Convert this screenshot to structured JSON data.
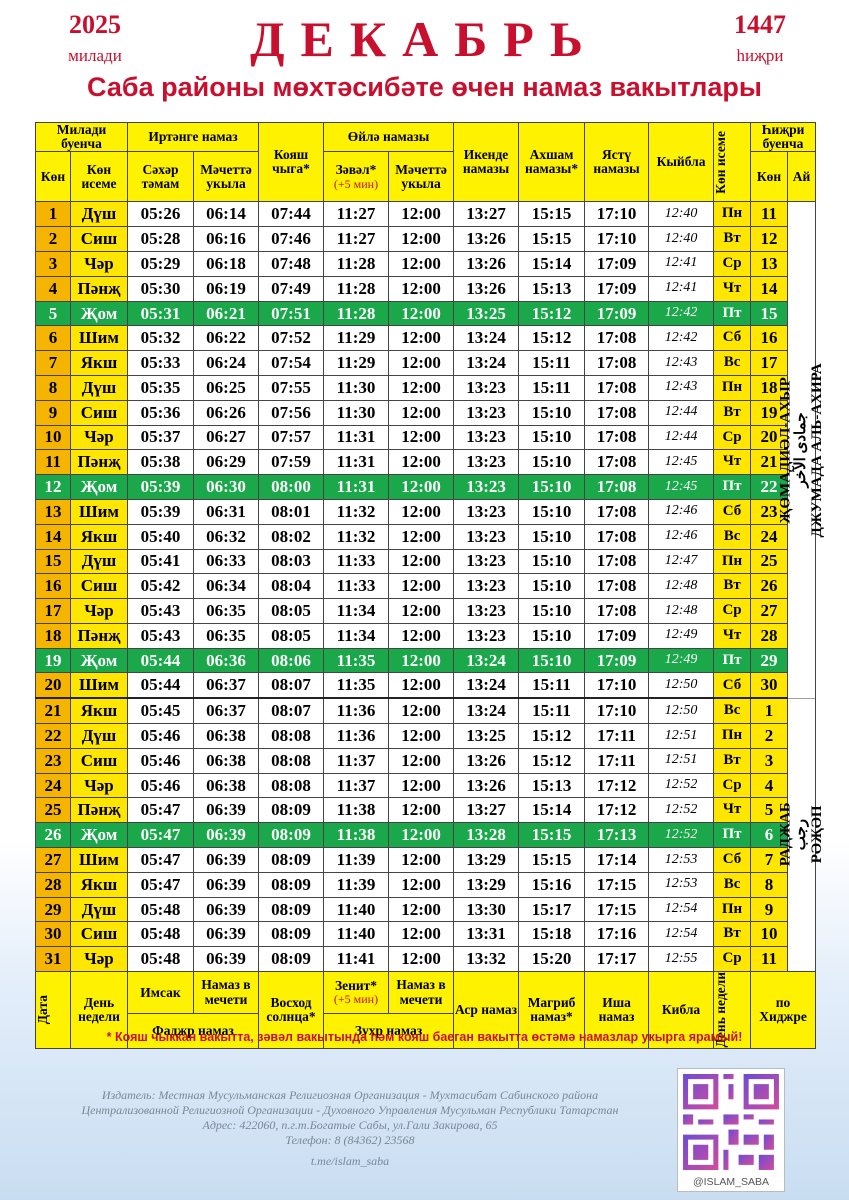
{
  "header": {
    "year_gregorian": "2025",
    "year_gregorian_label": "милади",
    "month": "ДЕКАБРЬ",
    "year_hijri": "1447",
    "year_hijri_label": "һиҗри",
    "subtitle": "Саба районы мөхтәсибәте өчен намаз вакытлары"
  },
  "table": {
    "head_top": [
      "Милади буенча",
      "Иртәнге намаз",
      "Кояш чыга*",
      "Өйлә намазы",
      "Икенде намазы",
      "Ахшам намазы*",
      "Ястү намазы",
      "Кыйбла",
      "Көн исеме",
      "Һиҗри буенча"
    ],
    "head_sub": [
      "Көн",
      "Көн исеме",
      "Сәхәр тәмам",
      "Мәчеттә укыла",
      "Зәвәл*",
      "(+5 мин)",
      "Мәчеттә укыла",
      "Көн",
      "Ай"
    ],
    "rows": [
      [
        1,
        "Дүш",
        "05:26",
        "06:14",
        "07:44",
        "11:27",
        "12:00",
        "13:27",
        "15:15",
        "17:10",
        "12:40",
        "Пн",
        11
      ],
      [
        2,
        "Сиш",
        "05:28",
        "06:16",
        "07:46",
        "11:27",
        "12:00",
        "13:26",
        "15:15",
        "17:10",
        "12:40",
        "Вт",
        12
      ],
      [
        3,
        "Чәр",
        "05:29",
        "06:18",
        "07:48",
        "11:28",
        "12:00",
        "13:26",
        "15:14",
        "17:09",
        "12:41",
        "Ср",
        13
      ],
      [
        4,
        "Пәнҗ",
        "05:30",
        "06:19",
        "07:49",
        "11:28",
        "12:00",
        "13:26",
        "15:13",
        "17:09",
        "12:41",
        "Чт",
        14
      ],
      [
        5,
        "Җом",
        "05:31",
        "06:21",
        "07:51",
        "11:28",
        "12:00",
        "13:25",
        "15:12",
        "17:09",
        "12:42",
        "Пт",
        15
      ],
      [
        6,
        "Шим",
        "05:32",
        "06:22",
        "07:52",
        "11:29",
        "12:00",
        "13:24",
        "15:12",
        "17:08",
        "12:42",
        "Сб",
        16
      ],
      [
        7,
        "Якш",
        "05:33",
        "06:24",
        "07:54",
        "11:29",
        "12:00",
        "13:24",
        "15:11",
        "17:08",
        "12:43",
        "Вс",
        17
      ],
      [
        8,
        "Дүш",
        "05:35",
        "06:25",
        "07:55",
        "11:30",
        "12:00",
        "13:23",
        "15:11",
        "17:08",
        "12:43",
        "Пн",
        18
      ],
      [
        9,
        "Сиш",
        "05:36",
        "06:26",
        "07:56",
        "11:30",
        "12:00",
        "13:23",
        "15:10",
        "17:08",
        "12:44",
        "Вт",
        19
      ],
      [
        10,
        "Чәр",
        "05:37",
        "06:27",
        "07:57",
        "11:31",
        "12:00",
        "13:23",
        "15:10",
        "17:08",
        "12:44",
        "Ср",
        20
      ],
      [
        11,
        "Пәнҗ",
        "05:38",
        "06:29",
        "07:59",
        "11:31",
        "12:00",
        "13:23",
        "15:10",
        "17:08",
        "12:45",
        "Чт",
        21
      ],
      [
        12,
        "Җом",
        "05:39",
        "06:30",
        "08:00",
        "11:31",
        "12:00",
        "13:23",
        "15:10",
        "17:08",
        "12:45",
        "Пт",
        22
      ],
      [
        13,
        "Шим",
        "05:39",
        "06:31",
        "08:01",
        "11:32",
        "12:00",
        "13:23",
        "15:10",
        "17:08",
        "12:46",
        "Сб",
        23
      ],
      [
        14,
        "Якш",
        "05:40",
        "06:32",
        "08:02",
        "11:32",
        "12:00",
        "13:23",
        "15:10",
        "17:08",
        "12:46",
        "Вс",
        24
      ],
      [
        15,
        "Дүш",
        "05:41",
        "06:33",
        "08:03",
        "11:33",
        "12:00",
        "13:23",
        "15:10",
        "17:08",
        "12:47",
        "Пн",
        25
      ],
      [
        16,
        "Сиш",
        "05:42",
        "06:34",
        "08:04",
        "11:33",
        "12:00",
        "13:23",
        "15:10",
        "17:08",
        "12:48",
        "Вт",
        26
      ],
      [
        17,
        "Чәр",
        "05:43",
        "06:35",
        "08:05",
        "11:34",
        "12:00",
        "13:23",
        "15:10",
        "17:08",
        "12:48",
        "Ср",
        27
      ],
      [
        18,
        "Пәнҗ",
        "05:43",
        "06:35",
        "08:05",
        "11:34",
        "12:00",
        "13:23",
        "15:10",
        "17:09",
        "12:49",
        "Чт",
        28
      ],
      [
        19,
        "Җом",
        "05:44",
        "06:36",
        "08:06",
        "11:35",
        "12:00",
        "13:24",
        "15:10",
        "17:09",
        "12:49",
        "Пт",
        29
      ],
      [
        20,
        "Шим",
        "05:44",
        "06:37",
        "08:07",
        "11:35",
        "12:00",
        "13:24",
        "15:11",
        "17:10",
        "12:50",
        "Сб",
        30
      ],
      [
        21,
        "Якш",
        "05:45",
        "06:37",
        "08:07",
        "11:36",
        "12:00",
        "13:24",
        "15:11",
        "17:10",
        "12:50",
        "Вс",
        1
      ],
      [
        22,
        "Дүш",
        "05:46",
        "06:38",
        "08:08",
        "11:36",
        "12:00",
        "13:25",
        "15:12",
        "17:11",
        "12:51",
        "Пн",
        2
      ],
      [
        23,
        "Сиш",
        "05:46",
        "06:38",
        "08:08",
        "11:37",
        "12:00",
        "13:26",
        "15:12",
        "17:11",
        "12:51",
        "Вт",
        3
      ],
      [
        24,
        "Чәр",
        "05:46",
        "06:38",
        "08:08",
        "11:37",
        "12:00",
        "13:26",
        "15:13",
        "17:12",
        "12:52",
        "Ср",
        4
      ],
      [
        25,
        "Пәнҗ",
        "05:47",
        "06:39",
        "08:09",
        "11:38",
        "12:00",
        "13:27",
        "15:14",
        "17:12",
        "12:52",
        "Чт",
        5
      ],
      [
        26,
        "Җом",
        "05:47",
        "06:39",
        "08:09",
        "11:38",
        "12:00",
        "13:28",
        "15:15",
        "17:13",
        "12:52",
        "Пт",
        6
      ],
      [
        27,
        "Шим",
        "05:47",
        "06:39",
        "08:09",
        "11:39",
        "12:00",
        "13:29",
        "15:15",
        "17:14",
        "12:53",
        "Сб",
        7
      ],
      [
        28,
        "Якш",
        "05:47",
        "06:39",
        "08:09",
        "11:39",
        "12:00",
        "13:29",
        "15:16",
        "17:15",
        "12:53",
        "Вс",
        8
      ],
      [
        29,
        "Дүш",
        "05:48",
        "06:39",
        "08:09",
        "11:40",
        "12:00",
        "13:30",
        "15:17",
        "17:15",
        "12:54",
        "Пн",
        9
      ],
      [
        30,
        "Сиш",
        "05:48",
        "06:39",
        "08:09",
        "11:40",
        "12:00",
        "13:31",
        "15:18",
        "17:16",
        "12:54",
        "Вт",
        10
      ],
      [
        31,
        "Чәр",
        "05:48",
        "06:39",
        "08:09",
        "11:41",
        "12:00",
        "13:32",
        "15:20",
        "17:17",
        "12:55",
        "Ср",
        11
      ]
    ],
    "hijri_months": [
      [
        "ҖӨМАДИӘЛ-АХЫР",
        "جمادى الآخر",
        "ДЖУМАДА АЛЬ-АХИРА"
      ],
      [
        "РАДЖАБ",
        "رجب",
        "РӘҖӘП"
      ]
    ],
    "foot_top": [
      "Дата",
      "День недели",
      "Имсак",
      "Намаз в мечети",
      "Восход солнца*",
      "Зенит*",
      "(+5 мин)",
      "Намаз в мечети",
      "Аср намаз",
      "Магриб намаз*",
      "Иша намаз",
      "Кибла",
      "День недели",
      "по Хиджре"
    ],
    "foot_sub": [
      "Фаджр намаз",
      "Зухр намаз"
    ]
  },
  "footer": {
    "note": "* Кояш чыккан вакытта, зәвәл вакытында һәм кояш баеган вакытта өстәмә намазлар укырга ярамый!",
    "lines": [
      "Издатель: Местная Мусульманская Религиозная Организация - Мухтасибат Сабинского района",
      "Централизованной Религиозной Организации - Духовного Управления Мусульман Республики Татарстан",
      "Адрес: 422060, п.г.т.Богатые Сабы, ул.Гали Закирова, 65",
      "Телефон: 8 (84362) 23568",
      "t.me/islam_saba"
    ],
    "handle": "@ISLAM_SABA"
  }
}
